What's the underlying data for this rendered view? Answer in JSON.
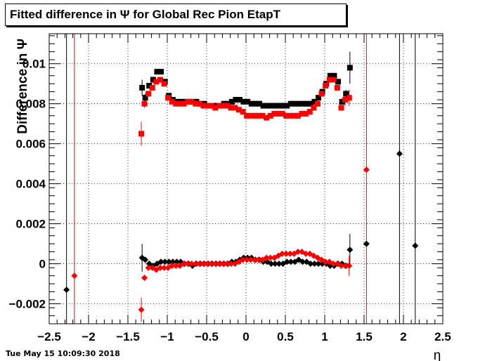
{
  "title": "Fitted difference in  Ψ  for Global Rec Pion EtapT",
  "timestamp": "Tue May 15 10:09:30 2018",
  "chart_data": {
    "type": "scatter",
    "title": "Fitted difference in  Ψ  for Global Rec Pion EtapT",
    "xlabel": "η",
    "ylabel": "Difference in  Ψ",
    "xlim": [
      -2.5,
      2.5
    ],
    "ylim": [
      -0.003,
      0.0115
    ],
    "x_ticks": [
      "−2.5",
      "−2",
      "−1.5",
      "−1",
      "−0.5",
      "0",
      "0.5",
      "1",
      "1.5",
      "2",
      "2.5"
    ],
    "y_ticks": [
      "−0.002",
      "0",
      "0.002",
      "0.004",
      "0.006",
      "0.008",
      "0.01"
    ],
    "y_tick_values": [
      -0.002,
      0,
      0.002,
      0.004,
      0.006,
      0.008,
      0.01
    ],
    "grid": true,
    "colors": {
      "black": "#000000",
      "red": "#ff0000"
    },
    "vertical_lines": [
      {
        "x": -2.28,
        "color": "#000000"
      },
      {
        "x": -2.18,
        "color": "#ff0000"
      },
      {
        "x": 1.53,
        "color": "#ff0000"
      },
      {
        "x": 1.95,
        "color": "#000000"
      },
      {
        "x": 2.15,
        "color": "#000000"
      }
    ],
    "series": [
      {
        "color": "#000000",
        "marker": "square",
        "x": [
          -1.32,
          -1.28,
          -1.23,
          -1.18,
          -1.13,
          -1.08,
          -1.03,
          -0.98,
          -0.93,
          -0.88,
          -0.83,
          -0.78,
          -0.73,
          -0.68,
          -0.63,
          -0.58,
          -0.53,
          -0.48,
          -0.43,
          -0.38,
          -0.33,
          -0.28,
          -0.23,
          -0.18,
          -0.13,
          -0.08,
          -0.03,
          0.02,
          0.07,
          0.12,
          0.17,
          0.22,
          0.27,
          0.32,
          0.37,
          0.42,
          0.47,
          0.52,
          0.57,
          0.62,
          0.67,
          0.72,
          0.77,
          0.82,
          0.87,
          0.92,
          0.97,
          1.02,
          1.07,
          1.12,
          1.17,
          1.22,
          1.27,
          1.32
        ],
        "y": [
          0.0088,
          0.0083,
          0.0089,
          0.0092,
          0.0096,
          0.0096,
          0.0091,
          0.0084,
          0.0082,
          0.0081,
          0.0081,
          0.0081,
          0.0081,
          0.0081,
          0.0081,
          0.008,
          0.008,
          0.0079,
          0.0079,
          0.0079,
          0.0079,
          0.008,
          0.008,
          0.0081,
          0.0082,
          0.0082,
          0.0081,
          0.0081,
          0.008,
          0.008,
          0.008,
          0.0079,
          0.0079,
          0.0079,
          0.0079,
          0.0079,
          0.0079,
          0.0079,
          0.008,
          0.008,
          0.008,
          0.008,
          0.008,
          0.008,
          0.0081,
          0.0083,
          0.0086,
          0.009,
          0.0094,
          0.0094,
          0.0091,
          0.0081,
          0.0085,
          0.0098
        ],
        "yerr": [
          0.0004,
          0.0002,
          0,
          0,
          0,
          0,
          0,
          0,
          0,
          0,
          0,
          0,
          0,
          0,
          0,
          0,
          0,
          0,
          0,
          0,
          0,
          0,
          0,
          0,
          0,
          0,
          0,
          0,
          0,
          0,
          0,
          0,
          0,
          0,
          0,
          0,
          0,
          0,
          0,
          0,
          0,
          0,
          0,
          0,
          0,
          0,
          0,
          0,
          0,
          0,
          0,
          0,
          0.0002,
          0.0008
        ]
      },
      {
        "color": "#ff0000",
        "marker": "square",
        "x": [
          -1.33,
          -1.29,
          -1.24,
          -1.19,
          -1.14,
          -1.09,
          -1.04,
          -0.99,
          -0.94,
          -0.89,
          -0.84,
          -0.79,
          -0.74,
          -0.69,
          -0.64,
          -0.59,
          -0.54,
          -0.49,
          -0.44,
          -0.39,
          -0.34,
          -0.29,
          -0.24,
          -0.19,
          -0.14,
          -0.09,
          -0.04,
          0.01,
          0.06,
          0.11,
          0.16,
          0.21,
          0.26,
          0.31,
          0.36,
          0.41,
          0.46,
          0.51,
          0.56,
          0.61,
          0.66,
          0.71,
          0.76,
          0.81,
          0.86,
          0.91,
          0.96,
          1.01,
          1.06,
          1.11,
          1.16,
          1.21,
          1.26,
          1.31
        ],
        "y": [
          0.0065,
          0.008,
          0.0085,
          0.0088,
          0.0091,
          0.0092,
          0.009,
          0.0083,
          0.0081,
          0.008,
          0.008,
          0.008,
          0.0081,
          0.0081,
          0.008,
          0.008,
          0.0079,
          0.0079,
          0.0079,
          0.0078,
          0.0079,
          0.0079,
          0.0079,
          0.0078,
          0.0078,
          0.0077,
          0.0076,
          0.0074,
          0.0074,
          0.0074,
          0.0074,
          0.0074,
          0.0073,
          0.0074,
          0.0075,
          0.0075,
          0.0075,
          0.0074,
          0.0074,
          0.0074,
          0.0074,
          0.0075,
          0.0075,
          0.0076,
          0.0078,
          0.008,
          0.0085,
          0.0089,
          0.0092,
          0.0092,
          0.0088,
          0.0078,
          0.0082,
          0.0083
        ],
        "yerr": [
          0.0006,
          0.0002,
          0,
          0,
          0,
          0,
          0,
          0,
          0,
          0,
          0,
          0,
          0,
          0,
          0,
          0,
          0,
          0,
          0,
          0,
          0,
          0,
          0,
          0,
          0,
          0,
          0,
          0,
          0,
          0,
          0,
          0,
          0,
          0,
          0,
          0,
          0,
          0,
          0,
          0,
          0,
          0,
          0,
          0,
          0,
          0,
          0,
          0,
          0,
          0,
          0,
          0,
          0.0003,
          0.0004
        ]
      },
      {
        "color": "#000000",
        "marker": "diamond",
        "x": [
          -2.28,
          -1.32,
          -1.28,
          -1.23,
          -1.18,
          -1.13,
          -1.08,
          -1.03,
          -0.98,
          -0.93,
          -0.88,
          -0.83,
          -0.78,
          -0.73,
          -0.68,
          -0.63,
          -0.58,
          -0.53,
          -0.48,
          -0.43,
          -0.38,
          -0.33,
          -0.28,
          -0.23,
          -0.18,
          -0.13,
          -0.08,
          -0.03,
          0.02,
          0.07,
          0.12,
          0.17,
          0.22,
          0.27,
          0.32,
          0.37,
          0.42,
          0.47,
          0.52,
          0.57,
          0.62,
          0.67,
          0.72,
          0.77,
          0.82,
          0.87,
          0.92,
          0.97,
          1.02,
          1.07,
          1.12,
          1.17,
          1.22,
          1.27,
          1.32,
          1.53,
          1.95,
          2.15
        ],
        "y": [
          -0.0013,
          0.0003,
          0.0002,
          0.0,
          -0.0001,
          0.0,
          0.0001,
          0.0001,
          0.0001,
          0.0001,
          0.0001,
          0.0001,
          0.0,
          0.0,
          -0.0001,
          0.0,
          0.0,
          0.0,
          0.0,
          0.0,
          0.0,
          0.0,
          0.0,
          0.0,
          0.0001,
          0.0001,
          0.0002,
          0.0003,
          0.0003,
          0.0003,
          0.0002,
          0.0002,
          0.0001,
          0.0001,
          0.0,
          0.0,
          0.0,
          0.0,
          0.0001,
          0.0001,
          0.0001,
          0.0002,
          0.0001,
          0.0001,
          0.0,
          0.0,
          0.0,
          0.0,
          0.0,
          -0.0001,
          -0.0001,
          0.0,
          0.0,
          -0.0001,
          0.0007,
          0.001,
          0.0055,
          0.0009
        ],
        "yerr": [
          0,
          0.0007,
          0,
          0,
          0,
          0,
          0,
          0,
          0,
          0,
          0,
          0,
          0,
          0,
          0,
          0,
          0,
          0,
          0,
          0,
          0,
          0,
          0,
          0,
          0,
          0,
          0,
          0,
          0,
          0,
          0,
          0,
          0,
          0,
          0,
          0,
          0,
          0,
          0,
          0,
          0,
          0,
          0,
          0,
          0,
          0,
          0,
          0,
          0,
          0,
          0,
          0,
          0,
          0,
          0.0008,
          0,
          0,
          0
        ]
      },
      {
        "color": "#ff0000",
        "marker": "diamond",
        "x": [
          -2.18,
          -1.33,
          -1.29,
          -1.24,
          -1.19,
          -1.14,
          -1.09,
          -1.04,
          -0.99,
          -0.94,
          -0.89,
          -0.84,
          -0.79,
          -0.74,
          -0.69,
          -0.64,
          -0.59,
          -0.54,
          -0.49,
          -0.44,
          -0.39,
          -0.34,
          -0.29,
          -0.24,
          -0.19,
          -0.14,
          -0.09,
          -0.04,
          0.01,
          0.06,
          0.11,
          0.16,
          0.21,
          0.26,
          0.31,
          0.36,
          0.41,
          0.46,
          0.51,
          0.56,
          0.61,
          0.66,
          0.71,
          0.76,
          0.81,
          0.86,
          0.91,
          0.96,
          1.01,
          1.06,
          1.11,
          1.16,
          1.21,
          1.26,
          1.31,
          1.53
        ],
        "y": [
          -0.0006,
          -0.0023,
          -0.0007,
          -0.0002,
          -0.0002,
          -0.0003,
          -0.0002,
          -0.0002,
          -0.0002,
          -0.0001,
          -0.0001,
          -0.0001,
          0.0,
          0.0,
          0.0,
          0.0,
          0.0,
          0.0,
          0.0,
          0.0,
          0.0,
          0.0,
          0.0,
          0.0,
          0.0,
          0.0,
          0.0001,
          0.0002,
          0.0002,
          0.0002,
          0.0002,
          0.0002,
          0.0002,
          0.0003,
          0.0003,
          0.0003,
          0.0004,
          0.0005,
          0.0005,
          0.0005,
          0.0005,
          0.0006,
          0.0006,
          0.0005,
          0.0005,
          0.0004,
          0.0003,
          0.0002,
          0.0001,
          0.0001,
          0.0,
          0.0,
          -0.0001,
          -0.0001,
          -0.0001,
          0.0047
        ],
        "yerr": [
          0,
          0.0006,
          0,
          0,
          0,
          0,
          0,
          0,
          0,
          0,
          0,
          0,
          0,
          0,
          0,
          0,
          0,
          0,
          0,
          0,
          0,
          0,
          0,
          0,
          0,
          0,
          0,
          0,
          0,
          0,
          0,
          0,
          0,
          0,
          0,
          0,
          0,
          0,
          0,
          0,
          0,
          0,
          0,
          0,
          0,
          0,
          0,
          0,
          0,
          0,
          0,
          0,
          0,
          0,
          0.0005,
          0
        ]
      }
    ]
  }
}
